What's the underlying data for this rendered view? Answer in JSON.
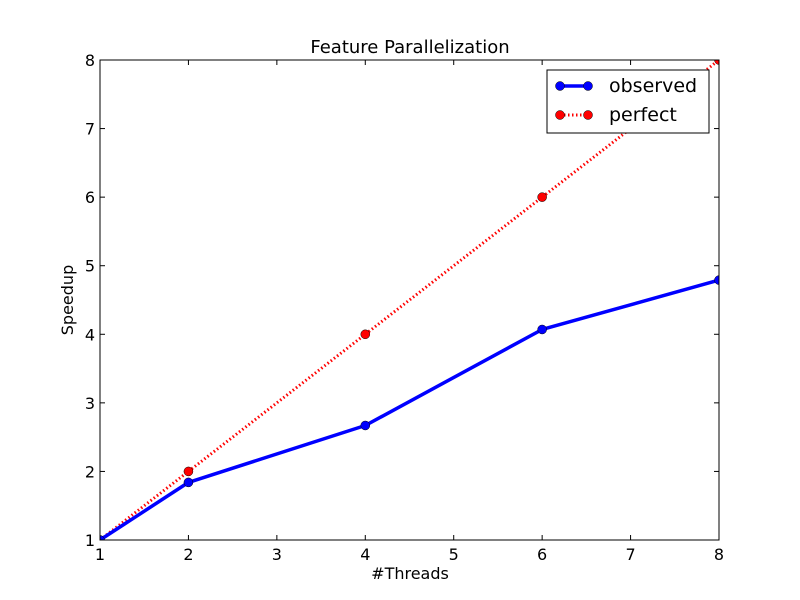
{
  "chart_data": {
    "type": "line",
    "title": "Feature Parallelization",
    "xlabel": "#Threads",
    "ylabel": "Speedup",
    "xlim": [
      1,
      8
    ],
    "ylim": [
      1,
      8
    ],
    "xticks": [
      1,
      2,
      3,
      4,
      5,
      6,
      7,
      8
    ],
    "yticks": [
      1,
      2,
      3,
      4,
      5,
      6,
      7,
      8
    ],
    "grid": false,
    "legend_position": "top-right",
    "series": [
      {
        "name": "observed",
        "color": "#0000ff",
        "line_style": "solid",
        "marker": "circle",
        "x": [
          1,
          2,
          4,
          6,
          8
        ],
        "y": [
          1.0,
          1.84,
          2.67,
          4.07,
          4.79
        ]
      },
      {
        "name": "perfect",
        "color": "#ff0000",
        "line_style": "dotted",
        "marker": "circle",
        "x": [
          1,
          2,
          4,
          6,
          8
        ],
        "y": [
          1,
          2,
          4,
          6,
          8
        ]
      }
    ]
  }
}
